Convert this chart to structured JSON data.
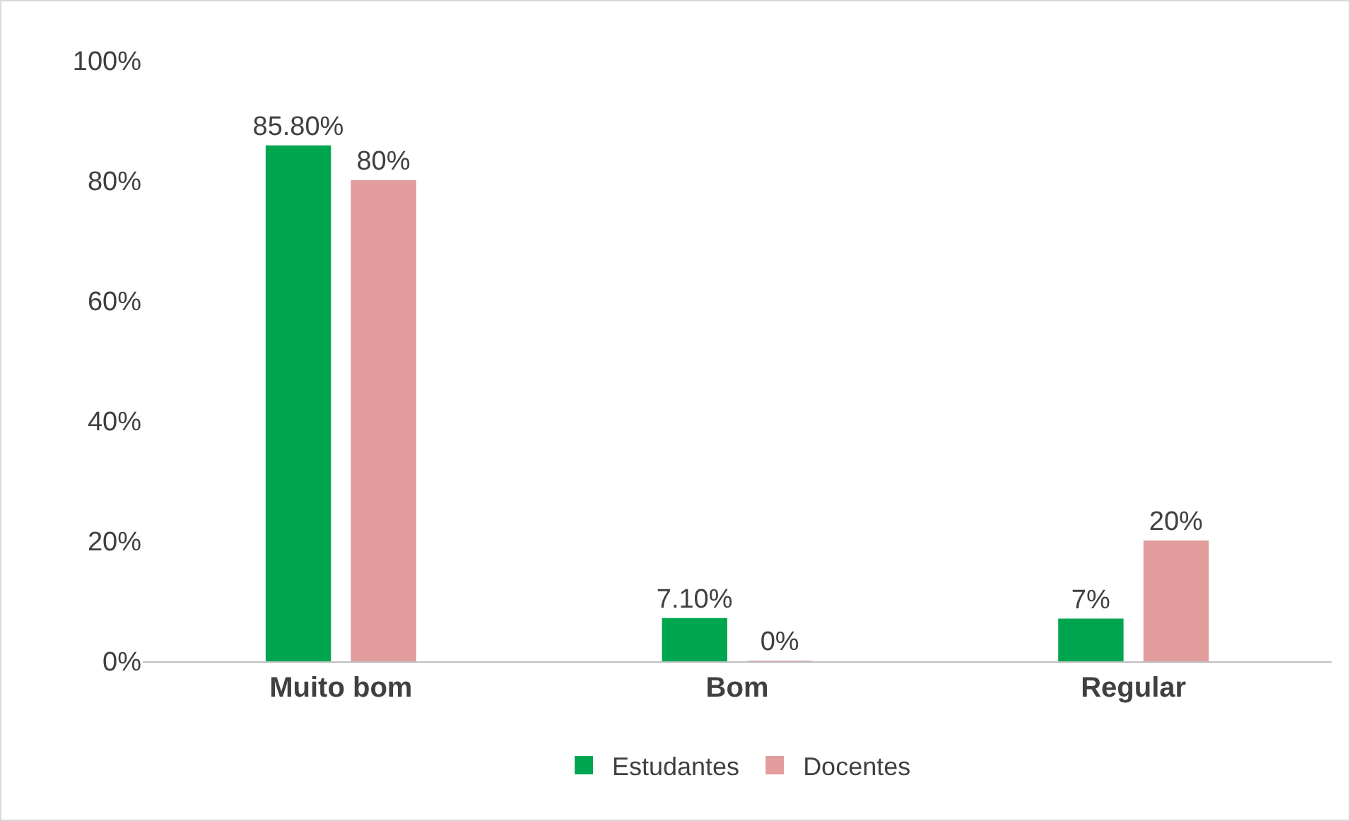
{
  "chart_data": {
    "type": "bar",
    "categories": [
      "Muito bom",
      "Bom",
      "Regular"
    ],
    "series": [
      {
        "name": "Estudantes",
        "color": "#00a64f",
        "values": [
          85.8,
          7.1,
          7
        ],
        "value_labels": [
          "85.80%",
          "7.10%",
          "7%"
        ]
      },
      {
        "name": "Docentes",
        "color": "#e39c9c",
        "values": [
          80,
          0,
          20
        ],
        "value_labels": [
          "80%",
          "0%",
          "20%"
        ]
      }
    ],
    "ylim": [
      0,
      100
    ],
    "yticks": [
      {
        "value": 0,
        "label": "0%"
      },
      {
        "value": 20,
        "label": "20%"
      },
      {
        "value": 40,
        "label": "40%"
      },
      {
        "value": 60,
        "label": "60%"
      },
      {
        "value": 80,
        "label": "80%"
      },
      {
        "value": 100,
        "label": "100%"
      }
    ],
    "grid": false,
    "legend": "bottom"
  }
}
